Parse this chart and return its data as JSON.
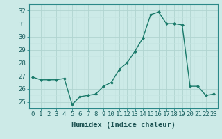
{
  "x": [
    0,
    1,
    2,
    3,
    4,
    5,
    6,
    7,
    8,
    9,
    10,
    11,
    12,
    13,
    14,
    15,
    16,
    17,
    18,
    19,
    20,
    21,
    22,
    23
  ],
  "y": [
    26.9,
    26.7,
    26.7,
    26.7,
    26.8,
    24.8,
    25.4,
    25.5,
    25.6,
    26.2,
    26.5,
    27.5,
    28.0,
    28.9,
    29.9,
    31.7,
    31.9,
    31.0,
    31.0,
    30.9,
    26.2,
    26.2,
    25.5,
    25.6
  ],
  "line_color": "#1a7a6a",
  "marker": "D",
  "marker_size": 2.0,
  "bg_color": "#cceae7",
  "grid_major_color": "#b0d4d0",
  "grid_minor_color": "#c4e4e1",
  "xlabel": "Humidex (Indice chaleur)",
  "ylabel_ticks": [
    25,
    26,
    27,
    28,
    29,
    30,
    31,
    32
  ],
  "xlim": [
    -0.5,
    23.5
  ],
  "ylim": [
    24.5,
    32.5
  ],
  "xtick_labels": [
    "0",
    "1",
    "2",
    "3",
    "4",
    "5",
    "6",
    "7",
    "8",
    "9",
    "10",
    "11",
    "12",
    "13",
    "14",
    "15",
    "16",
    "17",
    "18",
    "19",
    "20",
    "21",
    "22",
    "23"
  ],
  "label_fontsize": 7.5,
  "tick_fontsize": 6.5
}
